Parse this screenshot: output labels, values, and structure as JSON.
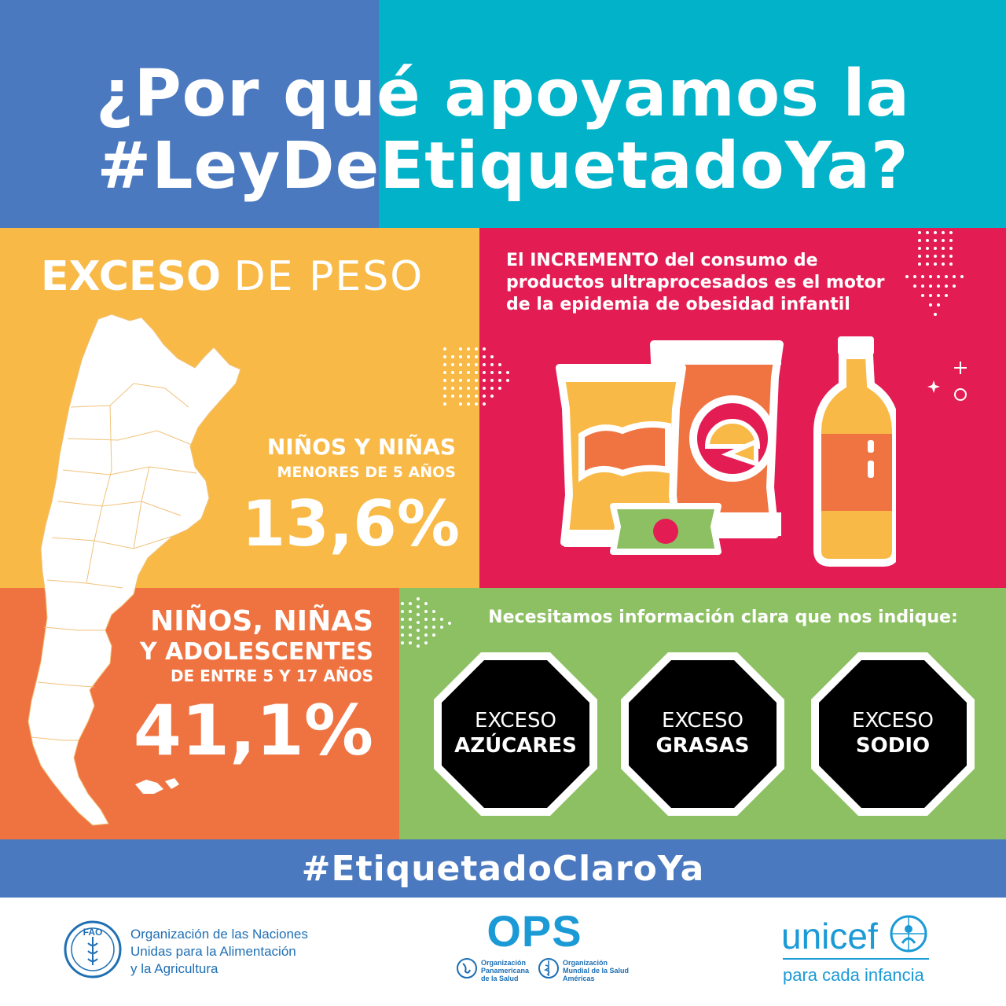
{
  "header": {
    "title_line1": "¿Por qué apoyamos la",
    "title_line2": "#LeyDeEtiquetadoYa?"
  },
  "overweight_panel": {
    "title_bold": "EXCESO",
    "title_light": "DE PESO",
    "group1_line1": "NIÑOS Y NIÑAS",
    "group1_line2": "MENORES DE 5 AÑOS",
    "group1_percent": "13,6%",
    "group2_line1": "NIÑOS, NIÑAS",
    "group2_line2": "Y ADOLESCENTES",
    "group2_line3": "DE ENTRE 5  Y 17 AÑOS",
    "group2_percent": "41,1%"
  },
  "increment_panel": {
    "text_prefix": "El",
    "text_bold": "INCREMENTO",
    "text_rest": "del consumo de productos ultraprocesados es el motor de la epidemia de obesidad infantil"
  },
  "labels_panel": {
    "heading": "Necesitamos información clara que nos indique:",
    "octagons": [
      {
        "line1": "EXCESO",
        "line2": "AZÚCARES"
      },
      {
        "line1": "EXCESO",
        "line2": "GRASAS"
      },
      {
        "line1": "EXCESO",
        "line2": "SODIO"
      }
    ]
  },
  "band": {
    "hashtag": "#EtiquetadoClaroYa"
  },
  "footer": {
    "fao_line1": "Organización de las Naciones",
    "fao_line2": "Unidas para la Alimentación",
    "fao_line3": "y la Agricultura",
    "fao_logo_letters": "FAO",
    "ops_acronym": "OPS",
    "ops_sub1_line1": "Organización",
    "ops_sub1_line2": "Panamericana",
    "ops_sub1_line3": "de la Salud",
    "ops_sub2_line1": "Organización",
    "ops_sub2_line2": "Mundial de la Salud",
    "ops_sub2_line3": "Américas",
    "unicef_word": "unicef",
    "unicef_tagline": "para cada infancia"
  },
  "colors": {
    "blue": "#4a79bf",
    "cyan": "#01b2c9",
    "yellow": "#f8b946",
    "magenta": "#e31d53",
    "orange": "#ef7341",
    "green": "#8dc063",
    "octagon_black": "#000000"
  }
}
